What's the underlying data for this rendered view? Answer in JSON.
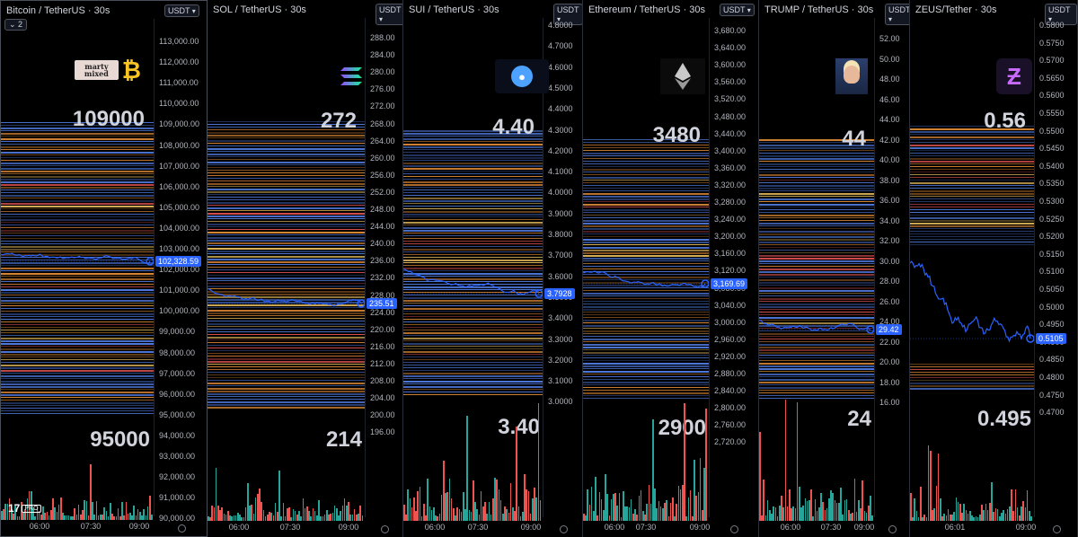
{
  "panels": [
    {
      "id": "btc",
      "title": "Bitcoin / TetherUS · 30s",
      "currency": "USDT",
      "badge": "2",
      "upper_level": "109000",
      "lower_level": "95000",
      "last_price": "102,328.59",
      "axis_ticks": [
        "113,000.00",
        "112,000.00",
        "111,000.00",
        "110,000.00",
        "109,000.00",
        "108,000.00",
        "107,000.00",
        "106,000.00",
        "105,000.00",
        "104,000.00",
        "103,000.00",
        "102,000.00",
        "101,000.00",
        "100,000.00",
        "99,000.00",
        "98,000.00",
        "97,000.00",
        "96,000.00",
        "95,000.00",
        "94,000.00",
        "93,000.00",
        "92,000.00",
        "91,000.00",
        "90,000.00"
      ],
      "time_labels": [
        "06:00",
        "07:30",
        "09:00"
      ],
      "logo_icon": "bitcoin-icon",
      "logo_text": "marty mixed",
      "tv_logo_text": "PRO"
    },
    {
      "id": "sol",
      "title": "SOL / TetherUS · 30s",
      "currency": "USDT",
      "upper_level": "272",
      "lower_level": "214",
      "last_price": "235.51",
      "axis_ticks": [
        "288.00",
        "284.00",
        "280.00",
        "276.00",
        "272.00",
        "268.00",
        "264.00",
        "260.00",
        "256.00",
        "252.00",
        "248.00",
        "244.00",
        "240.00",
        "236.00",
        "232.00",
        "228.00",
        "224.00",
        "220.00",
        "216.00",
        "212.00",
        "208.00",
        "204.00",
        "200.00",
        "196.00"
      ],
      "time_labels": [
        "06:00",
        "07:30",
        "09:00"
      ],
      "logo_icon": "solana-icon"
    },
    {
      "id": "sui",
      "title": "SUI / TetherUS · 30s",
      "currency": "USDT",
      "upper_level": "4.40",
      "lower_level": "3.40",
      "last_price": "3.7928",
      "axis_ticks": [
        "4.8000",
        "4.7000",
        "4.6000",
        "4.5000",
        "4.4000",
        "4.3000",
        "4.2000",
        "4.1000",
        "4.0000",
        "3.9000",
        "3.8000",
        "3.7000",
        "3.6000",
        "3.5000",
        "3.4000",
        "3.3000",
        "3.2000",
        "3.1000",
        "3.0000"
      ],
      "time_labels": [
        "06:00",
        "07:30",
        "09:00"
      ],
      "logo_icon": "sui-icon"
    },
    {
      "id": "eth",
      "title": "Ethereum / TetherUS · 30s",
      "currency": "USDT",
      "upper_level": "3480",
      "lower_level": "2900",
      "last_price": "3,169.69",
      "axis_ticks": [
        "3,680.00",
        "3,640.00",
        "3,600.00",
        "3,560.00",
        "3,520.00",
        "3,480.00",
        "3,440.00",
        "3,400.00",
        "3,360.00",
        "3,320.00",
        "3,280.00",
        "3,240.00",
        "3,200.00",
        "3,160.00",
        "3,120.00",
        "3,080.00",
        "3,040.00",
        "3,000.00",
        "2,960.00",
        "2,920.00",
        "2,880.00",
        "2,840.00",
        "2,800.00",
        "2,760.00",
        "2,720.00"
      ],
      "time_labels": [
        "06:00",
        "07:30",
        "09:00"
      ],
      "logo_icon": "ethereum-icon"
    },
    {
      "id": "trump",
      "title": "TRUMP / TetherUS · 30s",
      "currency": "USDT",
      "upper_level": "44",
      "lower_level": "24",
      "last_price": "29.42",
      "axis_ticks": [
        "52.00",
        "50.00",
        "48.00",
        "46.00",
        "44.00",
        "42.00",
        "40.00",
        "38.00",
        "36.00",
        "34.00",
        "32.00",
        "30.00",
        "28.00",
        "26.00",
        "24.00",
        "22.00",
        "20.00",
        "18.00",
        "16.00"
      ],
      "time_labels": [
        "06:00",
        "07:30",
        "09:00"
      ],
      "logo_icon": "trump-portrait-icon"
    },
    {
      "id": "zeus",
      "title": "ZEUS/Tether · 30s",
      "currency": "USDT",
      "upper_level": "0.56",
      "lower_level": "0.495",
      "last_price": "0.5105",
      "axis_ticks": [
        "0.5800",
        "0.5750",
        "0.5700",
        "0.5650",
        "0.5600",
        "0.5550",
        "0.5500",
        "0.5450",
        "0.5400",
        "0.5350",
        "0.5300",
        "0.5250",
        "0.5200",
        "0.5150",
        "0.5100",
        "0.5050",
        "0.5000",
        "0.4950",
        "0.4900",
        "0.4850",
        "0.4800",
        "0.4750",
        "0.4700"
      ],
      "time_labels": [
        "06:01",
        "09:00"
      ],
      "logo_icon": "zeus-icon"
    }
  ],
  "colors": {
    "background": "#000000",
    "price_line": "#2962ff",
    "tag": "#2962ff",
    "vol_up": "#26a69a",
    "vol_down": "#ef5350",
    "heat_blue": "#5b8cff",
    "heat_orange": "#ff9e3d",
    "heat_red": "#ff5e5e",
    "heat_yellow": "#ffd166"
  }
}
